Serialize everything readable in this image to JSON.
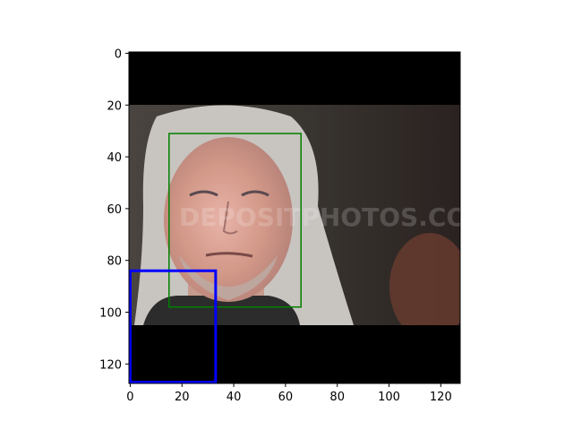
{
  "chart_data": {
    "type": "image",
    "title": "",
    "xlabel": "",
    "ylabel": "",
    "xlim": [
      -0.5,
      127.5
    ],
    "ylim": [
      127.5,
      -0.5
    ],
    "x_ticks": [
      0,
      20,
      40,
      60,
      80,
      100,
      120
    ],
    "y_ticks": [
      0,
      20,
      40,
      60,
      80,
      100,
      120
    ],
    "image_size": [
      128,
      128
    ],
    "content_rows": [
      20,
      105
    ],
    "padding_color": "#000000",
    "watermark": "DEPOSITPHOTOS.COM",
    "boxes": [
      {
        "x0": 15,
        "y0": 31,
        "x1": 66,
        "y1": 98,
        "color": "#008000"
      },
      {
        "x0": 0,
        "y0": 84,
        "x1": 33,
        "y1": 127,
        "color": "#0000ff"
      }
    ]
  }
}
